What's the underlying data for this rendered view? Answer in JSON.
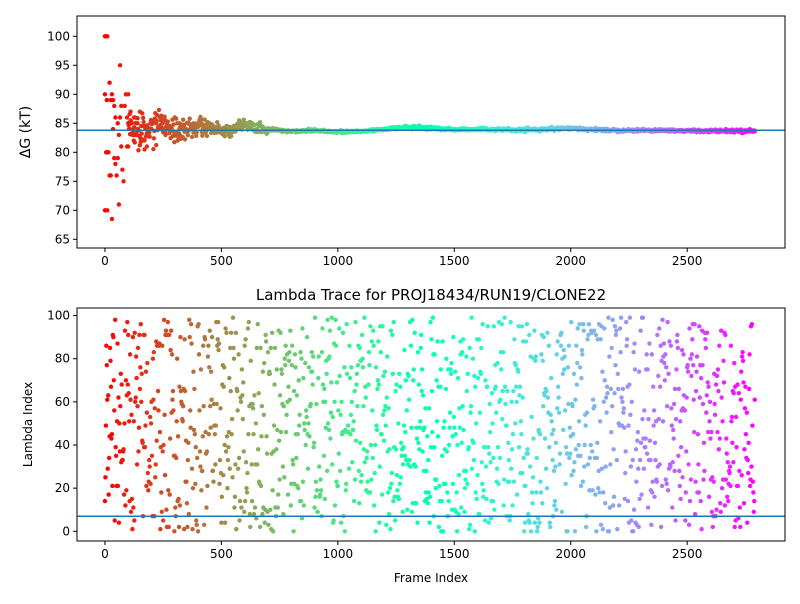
{
  "chart_data": [
    {
      "type": "scatter",
      "title": "",
      "xlabel": "",
      "ylabel": "ΔG (kT)",
      "xlim": [
        -120,
        2920
      ],
      "ylim": [
        63.5,
        103.5
      ],
      "xticks": [
        "0",
        "500",
        "1000",
        "1500",
        "2000",
        "2500"
      ],
      "xtick_values": [
        0,
        500,
        1000,
        1500,
        2000,
        2500
      ],
      "yticks": [
        "65",
        "70",
        "75",
        "80",
        "85",
        "90",
        "95",
        "100"
      ],
      "ytick_values": [
        65,
        70,
        75,
        80,
        85,
        90,
        95,
        100
      ],
      "hline": 83.8,
      "colormap": "rainbow",
      "color_by": "frame index",
      "n_frames": 2790,
      "early_scatter_points": [
        [
          0,
          100
        ],
        [
          5,
          100
        ],
        [
          10,
          100
        ],
        [
          0,
          90
        ],
        [
          8,
          89
        ],
        [
          5,
          80
        ],
        [
          10,
          80
        ],
        [
          15,
          80
        ],
        [
          20,
          76
        ],
        [
          0,
          70
        ],
        [
          10,
          70
        ],
        [
          20,
          92
        ],
        [
          25,
          89
        ],
        [
          30,
          90
        ],
        [
          35,
          89
        ],
        [
          25,
          76
        ],
        [
          30,
          68.5
        ],
        [
          40,
          88
        ],
        [
          45,
          86
        ],
        [
          35,
          84
        ],
        [
          40,
          79
        ],
        [
          45,
          78
        ],
        [
          50,
          76
        ],
        [
          55,
          85
        ],
        [
          60,
          83
        ],
        [
          55,
          79
        ],
        [
          60,
          71
        ],
        [
          65,
          95
        ],
        [
          70,
          88
        ],
        [
          65,
          86
        ],
        [
          70,
          81
        ],
        [
          75,
          77
        ],
        [
          80,
          75
        ],
        [
          85,
          88
        ],
        [
          90,
          90
        ],
        [
          95,
          86
        ],
        [
          100,
          90
        ],
        [
          95,
          81
        ],
        [
          100,
          81
        ],
        [
          110,
          87
        ],
        [
          115,
          85
        ],
        [
          120,
          84
        ],
        [
          125,
          86
        ],
        [
          130,
          83
        ],
        [
          140,
          85
        ],
        [
          150,
          87
        ],
        [
          160,
          82
        ],
        [
          170,
          80.5
        ],
        [
          180,
          81
        ],
        [
          200,
          84
        ],
        [
          220,
          85
        ],
        [
          240,
          85.5
        ],
        [
          260,
          83
        ],
        [
          280,
          84.5
        ],
        [
          300,
          86
        ],
        [
          320,
          84
        ],
        [
          350,
          83.5
        ],
        [
          380,
          85
        ],
        [
          420,
          84
        ],
        [
          460,
          84.8
        ],
        [
          500,
          83.8
        ],
        [
          560,
          83.6
        ],
        [
          620,
          85.2
        ],
        [
          660,
          84.6
        ]
      ],
      "series_trend": {
        "x": [
          700,
          800,
          900,
          1000,
          1100,
          1200,
          1300,
          1400,
          1500,
          1600,
          1700,
          1800,
          1900,
          2000,
          2100,
          2200,
          2300,
          2400,
          2500,
          2600,
          2700,
          2790
        ],
        "y": [
          84.0,
          83.6,
          83.8,
          83.5,
          83.6,
          84.0,
          84.3,
          84.2,
          83.9,
          84.0,
          83.9,
          83.8,
          84.0,
          84.1,
          83.9,
          83.8,
          83.8,
          83.8,
          83.7,
          83.7,
          83.7,
          83.7
        ]
      }
    },
    {
      "type": "scatter",
      "title": "Lambda Trace for PROJ18434/RUN19/CLONE22",
      "xlabel": "Frame Index",
      "ylabel": "Lambda Index",
      "xlim": [
        -120,
        2920
      ],
      "ylim": [
        -4.5,
        103.5
      ],
      "xticks": [
        "0",
        "500",
        "1000",
        "1500",
        "2000",
        "2500"
      ],
      "xtick_values": [
        0,
        500,
        1000,
        1500,
        2000,
        2500
      ],
      "yticks": [
        "0",
        "20",
        "40",
        "60",
        "80",
        "100"
      ],
      "ytick_values": [
        0,
        20,
        40,
        60,
        80,
        100
      ],
      "hline": 7,
      "colormap": "rainbow",
      "color_by": "frame index",
      "n_frames": 2790,
      "y_range": [
        0,
        99
      ],
      "distribution": "uniform random over lambda index 0–99, every 2 frames"
    }
  ]
}
